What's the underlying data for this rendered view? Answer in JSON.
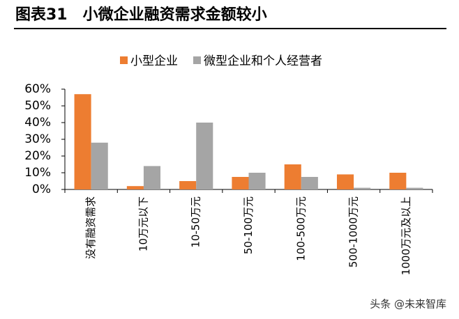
{
  "chart_data": {
    "type": "bar",
    "title": "图表31　小微企业融资需求金额较小",
    "categories": [
      "没有融资需求",
      "10万元以下",
      "10-50万元",
      "50-100万元",
      "100-500万元",
      "500-1000万元",
      "1000万元及以上"
    ],
    "series": [
      {
        "name": "小型企业",
        "color": "#ed7d31",
        "values": [
          57,
          2,
          5,
          7.5,
          15,
          9,
          10
        ]
      },
      {
        "name": "微型企业和个人经营者",
        "color": "#a5a5a5",
        "values": [
          28,
          14,
          40,
          10,
          7.5,
          1,
          1
        ]
      }
    ],
    "ylim": [
      0,
      60
    ],
    "yticks": [
      {
        "value": 0,
        "label": "0%"
      },
      {
        "value": 10,
        "label": "10%"
      },
      {
        "value": 20,
        "label": "20%"
      },
      {
        "value": 30,
        "label": "30%"
      },
      {
        "value": 40,
        "label": "40%"
      },
      {
        "value": 50,
        "label": "50%"
      },
      {
        "value": 60,
        "label": "60%"
      }
    ],
    "watermark": "头条 @未来智库"
  }
}
